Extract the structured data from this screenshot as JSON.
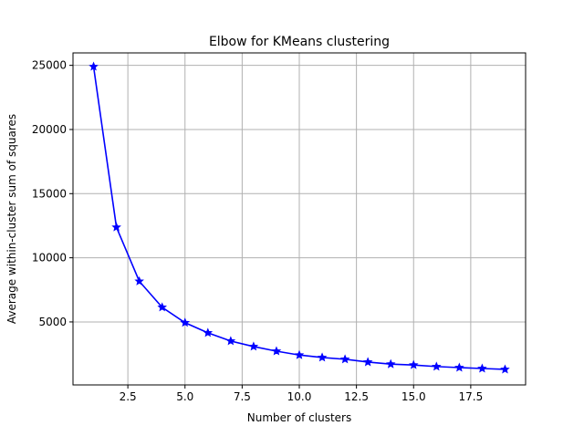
{
  "chart_data": {
    "type": "line",
    "title": "Elbow for KMeans clustering",
    "xlabel": "Number of clusters",
    "ylabel": "Average within-cluster sum of squares",
    "xlim": [
      0.1,
      19.9
    ],
    "ylim": [
      90,
      25970
    ],
    "grid": true,
    "x_ticks": [
      2.5,
      5.0,
      7.5,
      10.0,
      12.5,
      15.0,
      17.5
    ],
    "x_tick_labels": [
      "2.5",
      "5.0",
      "7.5",
      "10.0",
      "12.5",
      "15.0",
      "17.5"
    ],
    "y_ticks": [
      5000,
      10000,
      15000,
      20000,
      25000
    ],
    "y_tick_labels": [
      "5000",
      "10000",
      "15000",
      "20000",
      "25000"
    ],
    "series": [
      {
        "color": "#0000ff",
        "marker": "star",
        "x": [
          1,
          2,
          3,
          4,
          5,
          6,
          7,
          8,
          9,
          10,
          11,
          12,
          13,
          14,
          15,
          16,
          17,
          18,
          19
        ],
        "y": [
          24900,
          12380,
          8170,
          6140,
          4940,
          4150,
          3510,
          3080,
          2720,
          2420,
          2230,
          2090,
          1870,
          1710,
          1640,
          1520,
          1440,
          1370,
          1300
        ]
      }
    ]
  }
}
